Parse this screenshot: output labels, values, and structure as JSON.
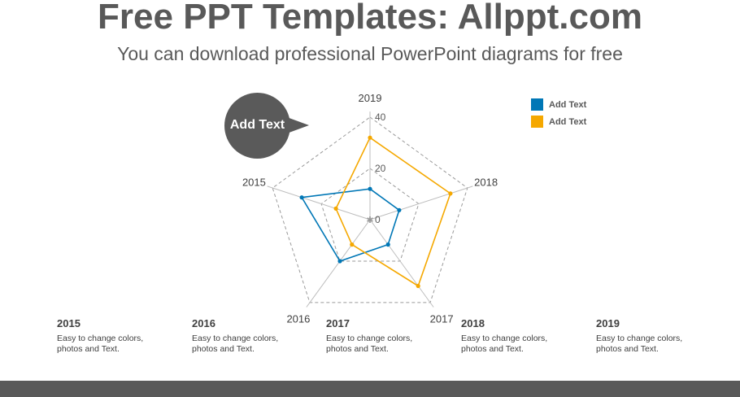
{
  "header": {
    "title": "Free PPT Templates: Allppt.com",
    "subtitle": "You can download professional PowerPoint diagrams for free"
  },
  "callout": {
    "text": "Add Text"
  },
  "legend": {
    "items": [
      {
        "label": "Add Text",
        "color": "#0077b6"
      },
      {
        "label": "Add Text",
        "color": "#f5a800"
      }
    ]
  },
  "chart_data": {
    "type": "radar",
    "categories": [
      "2019",
      "2018",
      "2017",
      "2016",
      "2015"
    ],
    "rlim": [
      0,
      40
    ],
    "ticks": [
      0,
      20,
      40
    ],
    "grid": true,
    "legend_position": "top-right",
    "series": [
      {
        "name": "Add Text",
        "color": "#0077b6",
        "values": [
          12,
          12,
          12,
          20,
          28
        ]
      },
      {
        "name": "Add Text",
        "color": "#f5a800",
        "values": [
          32,
          33,
          32,
          12,
          14
        ]
      }
    ]
  },
  "info": [
    {
      "year": "2015",
      "desc": "Easy to change colors, photos and Text."
    },
    {
      "year": "2016",
      "desc": "Easy to change colors, photos and Text."
    },
    {
      "year": "2017",
      "desc": "Easy to change colors, photos and Text."
    },
    {
      "year": "2018",
      "desc": "Easy to change colors, photos and Text."
    },
    {
      "year": "2019",
      "desc": "Easy to change colors, photos and Text."
    }
  ],
  "footer": {
    "color": "#595959"
  }
}
